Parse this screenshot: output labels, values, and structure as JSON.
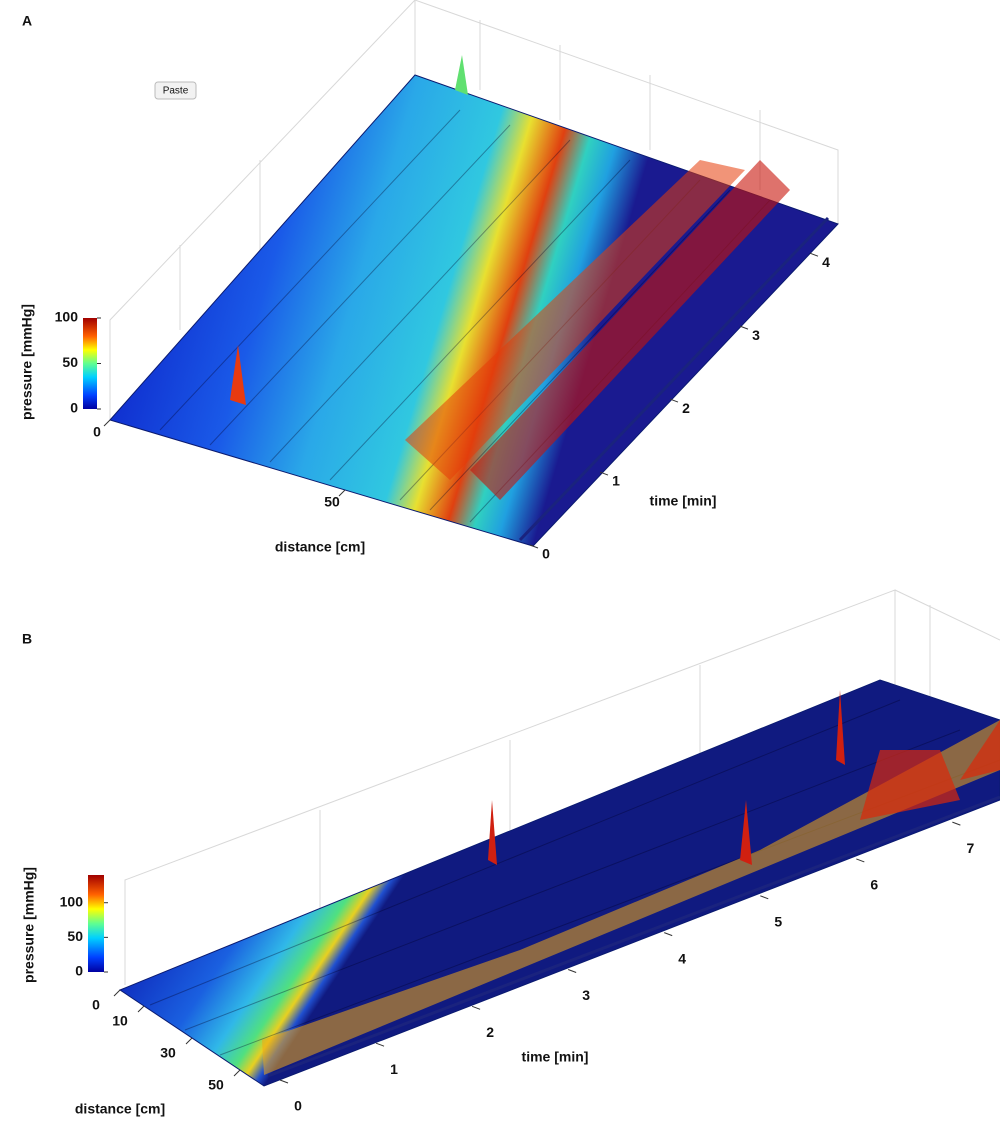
{
  "ui": {
    "paste_button": "Paste"
  },
  "chart_data": [
    {
      "type": "surface",
      "panel_label": "A",
      "zlabel": "pressure [mmHg]",
      "xlabel": "distance [cm]",
      "ylabel": "time [min]",
      "xlim": [
        0,
        90
      ],
      "xticks": [
        0,
        50
      ],
      "ylim": [
        0,
        4.4
      ],
      "yticks": [
        0,
        1,
        2,
        3,
        4
      ],
      "clim": [
        0,
        100
      ],
      "cticks": [
        0,
        50,
        100
      ]
    },
    {
      "type": "surface",
      "panel_label": "B",
      "zlabel": "pressure [mmHg]",
      "xlabel": "distance [cm]",
      "ylabel": "time [min]",
      "xlim": [
        0,
        60
      ],
      "xticks": [
        0,
        10,
        30,
        50
      ],
      "ylim": [
        0,
        7.6
      ],
      "yticks": [
        0,
        1,
        2,
        3,
        4,
        5,
        6,
        7
      ],
      "clim": [
        0,
        140
      ],
      "cticks": [
        0,
        50,
        100
      ]
    }
  ]
}
